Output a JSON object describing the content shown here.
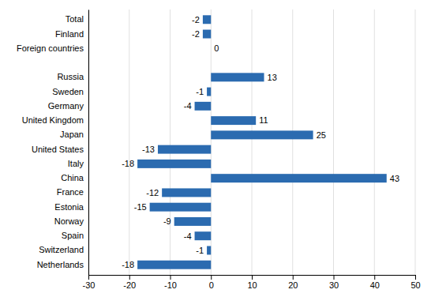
{
  "chart_data": {
    "type": "bar",
    "orientation": "horizontal",
    "categories": [
      "Netherlands",
      "Switzerland",
      "Spain",
      "Norway",
      "Estonia",
      "France",
      "China",
      "Italy",
      "United States",
      "Japan",
      "United Kingdom",
      "Germany",
      "Sweden",
      "Russia",
      null,
      "Foreign countries",
      "Finland",
      "Total"
    ],
    "values": [
      -18,
      -1,
      -4,
      -9,
      -15,
      -12,
      43,
      -18,
      -13,
      25,
      11,
      -4,
      -1,
      13,
      null,
      0,
      -2,
      -2
    ],
    "color": "#2B6BB0",
    "xlim": [
      -30,
      50
    ],
    "xticks": [
      -30,
      -20,
      -10,
      0,
      10,
      20,
      30,
      40,
      50
    ],
    "grid": true,
    "data_labels": true
  }
}
